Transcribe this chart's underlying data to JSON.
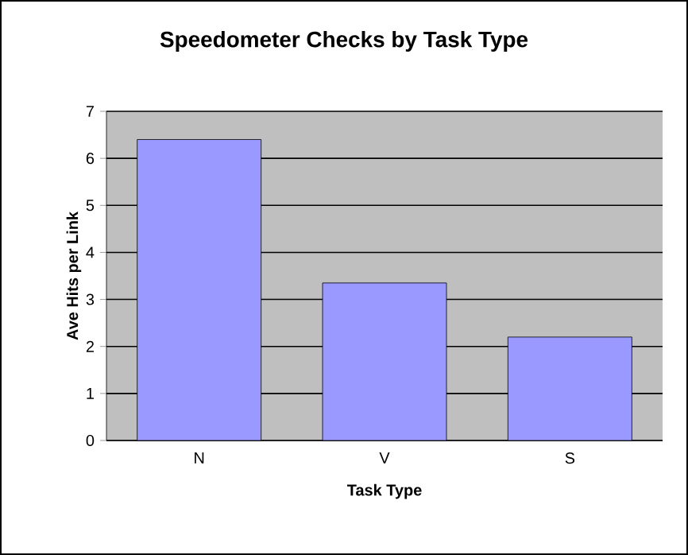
{
  "chart_data": {
    "type": "bar",
    "title": "Speedometer Checks by Task Type",
    "xlabel": "Task Type",
    "ylabel": "Ave Hits per Link",
    "categories": [
      "N",
      "V",
      "S"
    ],
    "values": [
      6.4,
      3.35,
      2.2
    ],
    "color": "#9999ff",
    "ylim": [
      0,
      7
    ],
    "yticks": [
      0,
      1,
      2,
      3,
      4,
      5,
      6,
      7
    ],
    "grid": "y"
  }
}
